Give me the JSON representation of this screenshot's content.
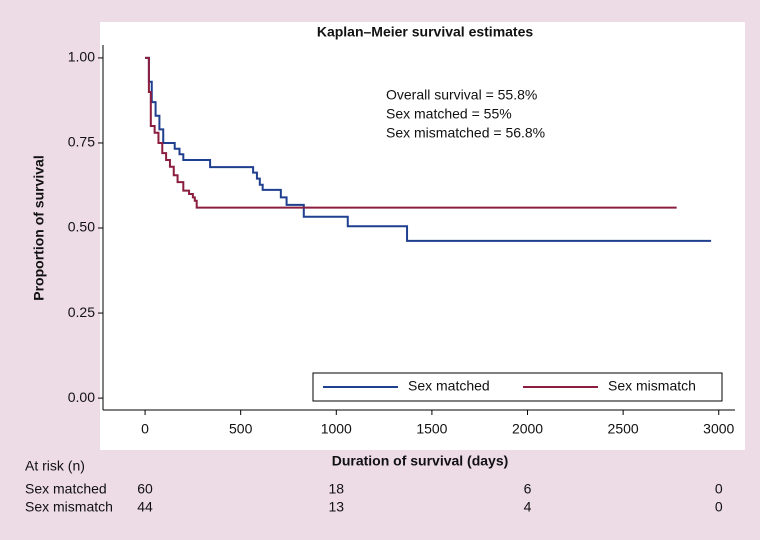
{
  "chart_data": {
    "type": "line",
    "step": "post",
    "title": "Kaplan–Meier survival estimates",
    "x_label": "Duration of survival (days)",
    "y_label": "Proportion of survival",
    "annotations": [
      "Overall survival = 55.8%",
      "Sex matched = 55%",
      "Sex mismatched = 56.8%"
    ],
    "xlim": [
      -220,
      3085
    ],
    "ylim": [
      -0.035,
      1.038
    ],
    "xticks": [
      0,
      500,
      1000,
      1500,
      2000,
      2500,
      3000
    ],
    "yticks": [
      {
        "value": 1,
        "label": "1.00"
      },
      {
        "value": 0.75,
        "label": "0.75"
      },
      {
        "value": 0.5,
        "label": "0.50"
      },
      {
        "value": 0.25,
        "label": "0.25"
      },
      {
        "value": 0,
        "label": "0.00"
      }
    ],
    "legend": "bottom-right",
    "series": [
      {
        "name": "Sex matched",
        "color": "#1f3f8f",
        "x": [
          0,
          10,
          20,
          35,
          55,
          75,
          95,
          155,
          180,
          200,
          340,
          565,
          585,
          600,
          615,
          710,
          740,
          830,
          1060,
          1370,
          2960
        ],
        "values": [
          1,
          1,
          0.93,
          0.87,
          0.83,
          0.79,
          0.75,
          0.733,
          0.717,
          0.7,
          0.679,
          0.663,
          0.645,
          0.627,
          0.612,
          0.59,
          0.568,
          0.533,
          0.505,
          0.462,
          0.462
        ]
      },
      {
        "name": "Sex mismatch",
        "color": "#8b1d3f",
        "x": [
          0,
          10,
          20,
          30,
          50,
          70,
          90,
          110,
          130,
          150,
          170,
          200,
          230,
          250,
          260,
          270,
          2780
        ],
        "values": [
          1,
          1,
          0.9,
          0.8,
          0.78,
          0.75,
          0.72,
          0.7,
          0.68,
          0.655,
          0.635,
          0.61,
          0.6,
          0.59,
          0.58,
          0.56,
          0.56
        ]
      }
    ],
    "at_risk": {
      "title": "At risk (n)",
      "rows": [
        {
          "name": "Sex matched",
          "counts": [
            60,
            18,
            6,
            0
          ]
        },
        {
          "name": "Sex mismatch",
          "counts": [
            44,
            13,
            4,
            0
          ]
        }
      ]
    }
  }
}
